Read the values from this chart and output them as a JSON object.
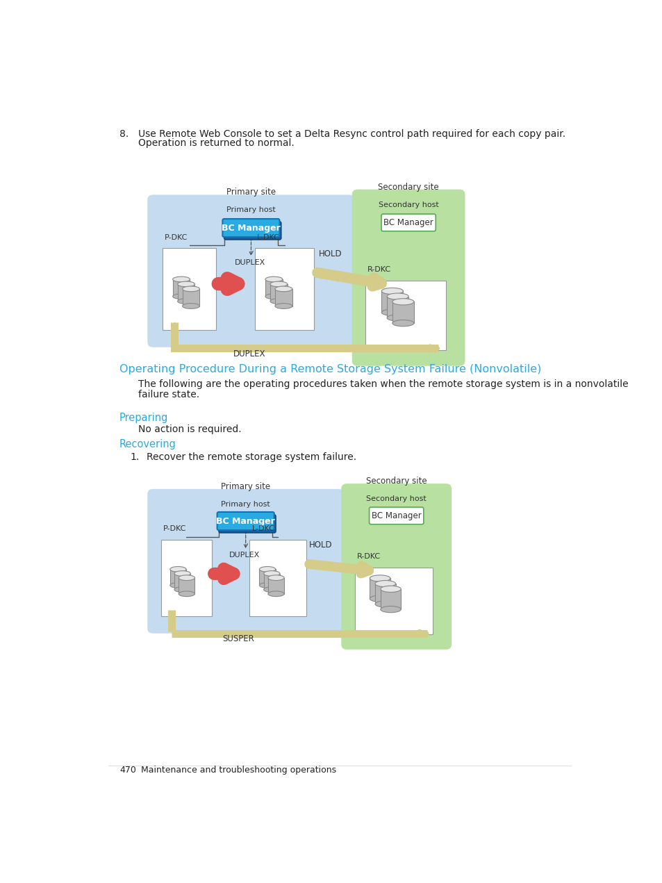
{
  "page_num": "470",
  "page_label": "Maintenance and troubleshooting operations",
  "section_title": "Operating Procedure During a Remote Storage System Failure (Nonvolatile)",
  "preparing_label": "Preparing",
  "preparing_body": "No action is required.",
  "recovering_label": "Recovering",
  "step1_text": "Recover the remote storage system failure.",
  "cyan_color": "#29ABE2",
  "bg_color": "#FFFFFF",
  "primary_site_bg": "#C5DCF0",
  "secondary_site_bg": "#B8E0A0",
  "bc_manager_cyan": "#29ABE2",
  "bc_manager_darkblue": "#1060A0",
  "arrow_red": "#E05050",
  "arrow_yellow_fill": "#D4CC88",
  "arrow_yellow_edge": "#C8BE70",
  "text_color": "#222222",
  "gray_text": "#444444"
}
